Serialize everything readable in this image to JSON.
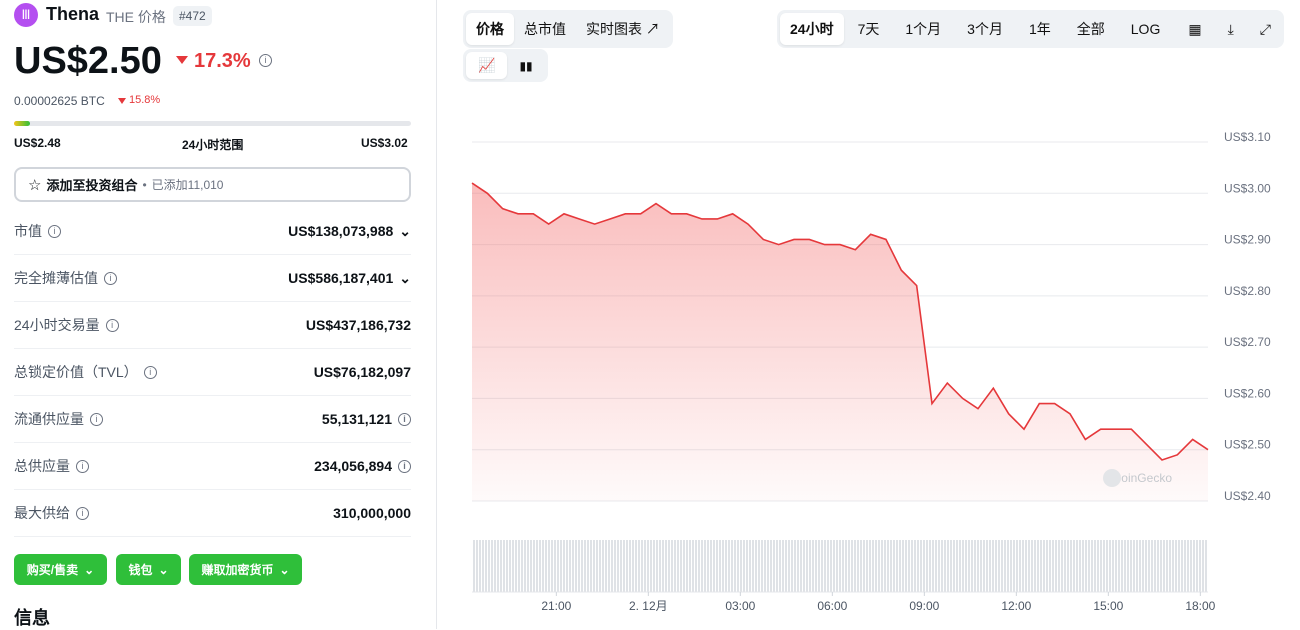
{
  "coin": {
    "name": "Thena",
    "symbol": "THE",
    "label": "价格",
    "rank": "#472"
  },
  "price": {
    "value": "US$2.50",
    "change": "17.3%",
    "btc": "0.00002625 BTC",
    "btc_change": "15.8%"
  },
  "range": {
    "low": "US$2.48",
    "label": "24小时范围",
    "high": "US$3.02"
  },
  "portfolio": {
    "button": "添加至投资组合",
    "added": "已添加11,010"
  },
  "stats": [
    {
      "label": "市值",
      "value": "US$138,073,988"
    },
    {
      "label": "完全摊薄估值",
      "value": "US$586,187,401"
    },
    {
      "label": "24小时交易量",
      "value": "US$437,186,732"
    },
    {
      "label": "总锁定价值（TVL）",
      "value": "US$76,182,097"
    },
    {
      "label": "流通供应量",
      "value": "55,131,121"
    },
    {
      "label": "总供应量",
      "value": "234,056,894"
    },
    {
      "label": "最大供给",
      "value": "310,000,000"
    }
  ],
  "actions": [
    "购买/售卖",
    "钱包",
    "赚取加密货币"
  ],
  "section": "信息",
  "chart_tabs": [
    "价格",
    "总市值",
    "实时图表"
  ],
  "time_tabs": [
    "24小时",
    "7天",
    "1个月",
    "3个月",
    "1年",
    "全部",
    "LOG"
  ],
  "chart_data": {
    "type": "line",
    "watermark": "CoinGecko",
    "x": [
      0,
      0.5,
      1,
      1.5,
      2,
      2.5,
      3,
      3.5,
      4,
      4.5,
      5,
      5.5,
      6,
      6.5,
      7,
      7.5,
      8,
      8.5,
      9,
      9.5,
      10,
      10.5,
      11,
      11.5,
      12,
      12.5,
      13,
      13.5,
      14,
      14.5,
      15,
      15.5,
      16,
      16.5,
      17,
      17.5,
      18,
      18.5,
      19,
      19.5,
      20,
      20.5,
      21,
      21.5,
      22,
      22.5,
      23,
      23.5,
      24
    ],
    "series": [
      {
        "name": "价格",
        "color": "#e5383b",
        "values": [
          3.02,
          3.0,
          2.97,
          2.96,
          2.96,
          2.94,
          2.96,
          2.95,
          2.94,
          2.95,
          2.96,
          2.96,
          2.98,
          2.96,
          2.96,
          2.95,
          2.95,
          2.96,
          2.94,
          2.91,
          2.9,
          2.91,
          2.91,
          2.9,
          2.9,
          2.89,
          2.92,
          2.91,
          2.85,
          2.82,
          2.59,
          2.63,
          2.6,
          2.58,
          2.62,
          2.57,
          2.54,
          2.59,
          2.59,
          2.57,
          2.52,
          2.54,
          2.54,
          2.54,
          2.51,
          2.48,
          2.49,
          2.52,
          2.5
        ]
      }
    ],
    "xlim": [
      0,
      24
    ],
    "xticks": [
      {
        "value": 2.75,
        "label": "21:00"
      },
      {
        "value": 5.75,
        "label": "2. 12月"
      },
      {
        "value": 8.75,
        "label": "03:00"
      },
      {
        "value": 11.75,
        "label": "06:00"
      },
      {
        "value": 14.75,
        "label": "09:00"
      },
      {
        "value": 17.75,
        "label": "12:00"
      },
      {
        "value": 20.75,
        "label": "15:00"
      },
      {
        "value": 23.75,
        "label": "18:00"
      }
    ],
    "ylim": [
      2.4,
      3.18
    ],
    "yticks": [
      {
        "value": 2.4,
        "label": "US$2.40"
      },
      {
        "value": 2.5,
        "label": "US$2.50"
      },
      {
        "value": 2.6,
        "label": "US$2.60"
      },
      {
        "value": 2.7,
        "label": "US$2.70"
      },
      {
        "value": 2.8,
        "label": "US$2.80"
      },
      {
        "value": 2.9,
        "label": "US$2.90"
      },
      {
        "value": 3.0,
        "label": "US$3.00"
      },
      {
        "value": 3.1,
        "label": "US$3.10"
      }
    ],
    "grid": true
  }
}
